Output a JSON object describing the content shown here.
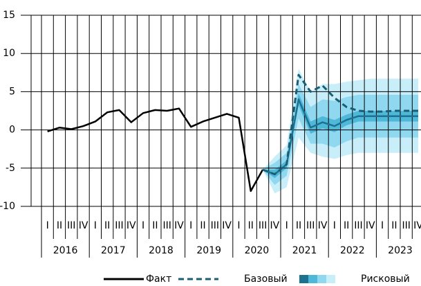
{
  "chart_data": {
    "type": "line",
    "categories": [
      "I",
      "II",
      "III",
      "IV",
      "I",
      "II",
      "III",
      "IV",
      "I",
      "II",
      "III",
      "IV",
      "I",
      "II",
      "III",
      "IV",
      "I",
      "II",
      "III",
      "IV",
      "I",
      "II",
      "III",
      "IV",
      "I",
      "II",
      "III",
      "IV",
      "I",
      "II",
      "III",
      "IV"
    ],
    "year_groups": [
      "2016",
      "2017",
      "2018",
      "2019",
      "2020",
      "2021",
      "2022",
      "2023"
    ],
    "ylim": [
      -10,
      15
    ],
    "yticks": [
      -10,
      -5,
      0,
      5,
      10,
      15
    ],
    "grid": true,
    "series": [
      {
        "name": "Факт",
        "color": "#000000",
        "style": "solid",
        "values": [
          -0.2,
          0.3,
          0.1,
          0.5,
          1.1,
          2.3,
          2.6,
          1.0,
          2.2,
          2.6,
          2.5,
          2.8,
          0.4,
          1.1,
          1.6,
          2.1,
          1.6,
          -8.0,
          -5.2,
          null,
          null,
          null,
          null,
          null,
          null,
          null,
          null,
          null,
          null,
          null,
          null,
          null
        ]
      },
      {
        "name": "Базовый",
        "color": "#1a5e73",
        "style": "dashed",
        "values": [
          null,
          null,
          null,
          null,
          null,
          null,
          null,
          null,
          null,
          null,
          null,
          null,
          null,
          null,
          null,
          null,
          null,
          null,
          -5.2,
          -5.8,
          -4.5,
          7.2,
          5.0,
          5.8,
          4.2,
          3.0,
          2.5,
          2.4,
          2.4,
          2.5,
          2.5,
          2.5
        ]
      },
      {
        "name": "Рисковый",
        "color": "#1d7290",
        "style": "solid",
        "values": [
          null,
          null,
          null,
          null,
          null,
          null,
          null,
          null,
          null,
          null,
          null,
          null,
          null,
          null,
          null,
          null,
          null,
          null,
          -5.2,
          -5.8,
          -4.5,
          4.0,
          0.3,
          1.0,
          0.5,
          1.3,
          1.8,
          1.8,
          1.8,
          1.8,
          1.8,
          1.8
        ],
        "bands": [
          {
            "color": "#c8eefa",
            "lower": [
              null,
              null,
              null,
              null,
              null,
              null,
              null,
              null,
              null,
              null,
              null,
              null,
              null,
              null,
              null,
              null,
              null,
              null,
              -5.2,
              -8.3,
              -7.5,
              -1.0,
              -3.0,
              -3.5,
              -3.8,
              -3.3,
              -3.0,
              -3.0,
              -3.0,
              -3.0,
              -3.0,
              -3.0
            ],
            "upper": [
              null,
              null,
              null,
              null,
              null,
              null,
              null,
              null,
              null,
              null,
              null,
              null,
              null,
              null,
              null,
              null,
              null,
              null,
              -5.2,
              -3.5,
              -2.0,
              8.0,
              5.0,
              6.0,
              6.0,
              6.3,
              6.5,
              6.7,
              6.7,
              6.7,
              6.7,
              6.7
            ]
          },
          {
            "color": "#8fd8ef",
            "lower": [
              null,
              null,
              null,
              null,
              null,
              null,
              null,
              null,
              null,
              null,
              null,
              null,
              null,
              null,
              null,
              null,
              null,
              null,
              -5.2,
              -7.2,
              -6.0,
              1.5,
              -1.8,
              -1.8,
              -2.3,
              -1.5,
              -1.0,
              -1.0,
              -1.0,
              -1.0,
              -1.0,
              -1.0
            ],
            "upper": [
              null,
              null,
              null,
              null,
              null,
              null,
              null,
              null,
              null,
              null,
              null,
              null,
              null,
              null,
              null,
              null,
              null,
              null,
              -5.2,
              -4.3,
              -3.0,
              6.0,
              3.0,
              4.0,
              3.8,
              4.3,
              4.6,
              4.6,
              4.6,
              4.6,
              4.6,
              4.6
            ]
          },
          {
            "color": "#4fb8d8",
            "lower": [
              null,
              null,
              null,
              null,
              null,
              null,
              null,
              null,
              null,
              null,
              null,
              null,
              null,
              null,
              null,
              null,
              null,
              null,
              -5.2,
              -6.3,
              -5.0,
              3.2,
              -0.5,
              0.2,
              -0.3,
              0.6,
              1.1,
              1.1,
              1.1,
              1.1,
              1.1,
              1.1
            ],
            "upper": [
              null,
              null,
              null,
              null,
              null,
              null,
              null,
              null,
              null,
              null,
              null,
              null,
              null,
              null,
              null,
              null,
              null,
              null,
              -5.2,
              -5.2,
              -4.0,
              4.8,
              1.1,
              1.8,
              1.3,
              2.0,
              2.5,
              2.5,
              2.5,
              2.5,
              2.5,
              2.5
            ]
          }
        ]
      }
    ]
  }
}
